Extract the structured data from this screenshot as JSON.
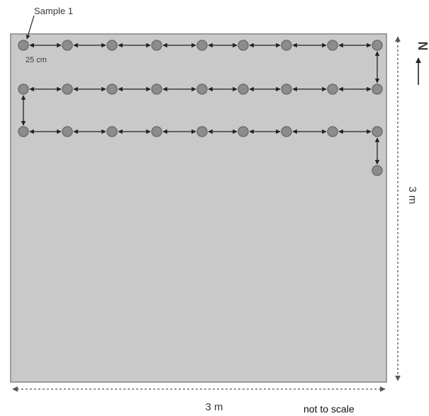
{
  "labels": {
    "sample_start": "Sample 1",
    "spacing": "25 cm",
    "width": "3 m",
    "height": "3 m",
    "north": "N",
    "scale_note": "not to scale"
  },
  "grid": {
    "rows": [
      {
        "samples": 9
      },
      {
        "samples": 9
      },
      {
        "samples": 9
      }
    ],
    "final_sample_extra": 1
  },
  "colors": {
    "plot_fill": "#c9c9c9",
    "plot_border": "#9c9c9c",
    "sample_fill": "#8c8c8c",
    "sample_stroke": "#6e6e6e",
    "arrow": "#222222",
    "dimension_line": "#555555"
  }
}
